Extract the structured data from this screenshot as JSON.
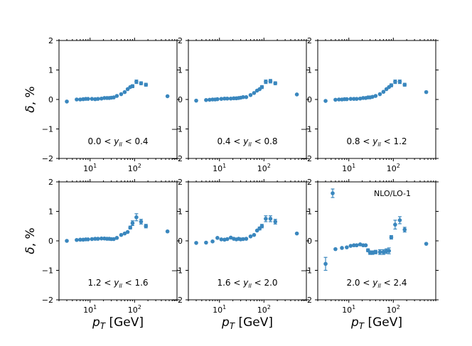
{
  "figure": {
    "x_axis_label_main": "p",
    "x_axis_label_sub": "T",
    "x_axis_label_unit": "[GeV]",
    "y_axis_label_main": "δ",
    "y_axis_label_unit": ", %",
    "legend_label": "NLO/LO-1",
    "x_tick_labels": [
      "10",
      "10"
    ],
    "x_tick_exponents": [
      "1",
      "2"
    ],
    "y_tick_labels": [
      "2",
      "1",
      "0",
      "−1",
      "−2"
    ],
    "marker_color": "#3a87be"
  },
  "chart_data": [
    {
      "type": "scatter",
      "panel": "0.0 < y_ll < 0.4",
      "label_left": "0.0 < ",
      "label_var": "y",
      "label_sub": "ll",
      "label_right": " < 0.4",
      "xscale": "log",
      "xlim": [
        2,
        900
      ],
      "ylim": [
        -2,
        2
      ],
      "x": [
        3,
        5,
        6,
        7,
        8,
        9,
        11,
        13,
        15,
        18,
        21,
        24,
        27,
        30,
        34,
        40,
        50,
        60,
        70,
        80,
        90,
        110,
        140,
        180,
        550
      ],
      "y": [
        -0.07,
        0.0,
        0.0,
        0.01,
        0.02,
        0.02,
        0.02,
        0.01,
        0.02,
        0.03,
        0.05,
        0.05,
        0.05,
        0.06,
        0.07,
        0.12,
        0.18,
        0.25,
        0.35,
        0.42,
        0.45,
        0.6,
        0.55,
        0.5,
        0.11
      ],
      "yerr": [
        0.02,
        0.02,
        0.02,
        0.02,
        0.02,
        0.02,
        0.02,
        0.02,
        0.02,
        0.02,
        0.02,
        0.02,
        0.02,
        0.02,
        0.02,
        0.02,
        0.03,
        0.03,
        0.04,
        0.04,
        0.05,
        0.06,
        0.05,
        0.05,
        0.04
      ]
    },
    {
      "type": "scatter",
      "panel": "0.4 < y_ll < 0.8",
      "label_left": "0.4 < ",
      "label_var": "y",
      "label_sub": "ll",
      "label_right": " < 0.8",
      "xscale": "log",
      "xlim": [
        2,
        900
      ],
      "ylim": [
        -2,
        2
      ],
      "x": [
        3,
        5,
        6,
        7,
        8,
        9,
        11,
        13,
        15,
        18,
        21,
        24,
        27,
        30,
        34,
        40,
        50,
        60,
        70,
        80,
        90,
        110,
        140,
        180,
        550
      ],
      "y": [
        -0.04,
        -0.02,
        -0.01,
        0.0,
        0.0,
        0.01,
        0.02,
        0.03,
        0.03,
        0.03,
        0.04,
        0.04,
        0.05,
        0.06,
        0.08,
        0.08,
        0.15,
        0.22,
        0.3,
        0.35,
        0.42,
        0.6,
        0.62,
        0.55,
        0.17
      ],
      "yerr": [
        0.02,
        0.02,
        0.02,
        0.02,
        0.02,
        0.02,
        0.02,
        0.02,
        0.02,
        0.02,
        0.02,
        0.02,
        0.02,
        0.02,
        0.02,
        0.02,
        0.03,
        0.03,
        0.04,
        0.04,
        0.05,
        0.06,
        0.06,
        0.05,
        0.04
      ]
    },
    {
      "type": "scatter",
      "panel": "0.8 < y_ll < 1.2",
      "label_left": "0.8 < ",
      "label_var": "y",
      "label_sub": "ll",
      "label_right": " < 1.2",
      "xscale": "log",
      "xlim": [
        2,
        900
      ],
      "ylim": [
        -2,
        2
      ],
      "x": [
        3,
        5,
        6,
        7,
        8,
        9,
        11,
        13,
        15,
        18,
        21,
        24,
        27,
        30,
        34,
        40,
        50,
        60,
        70,
        80,
        90,
        110,
        140,
        180,
        550
      ],
      "y": [
        -0.05,
        -0.01,
        0.0,
        0.0,
        0.01,
        0.01,
        0.02,
        0.02,
        0.02,
        0.03,
        0.05,
        0.05,
        0.07,
        0.07,
        0.09,
        0.12,
        0.18,
        0.26,
        0.35,
        0.42,
        0.48,
        0.6,
        0.6,
        0.5,
        0.25
      ],
      "yerr": [
        0.02,
        0.02,
        0.02,
        0.02,
        0.02,
        0.02,
        0.02,
        0.02,
        0.02,
        0.02,
        0.02,
        0.02,
        0.02,
        0.02,
        0.02,
        0.02,
        0.03,
        0.03,
        0.04,
        0.04,
        0.05,
        0.06,
        0.06,
        0.05,
        0.04
      ]
    },
    {
      "type": "scatter",
      "panel": "1.2 < y_ll < 1.6",
      "label_left": "1.2 < ",
      "label_var": "y",
      "label_sub": "ll",
      "label_right": " < 1.6",
      "xscale": "log",
      "xlim": [
        2,
        900
      ],
      "ylim": [
        -2,
        2
      ],
      "x": [
        3,
        5,
        6,
        7,
        8,
        9,
        11,
        13,
        15,
        18,
        21,
        24,
        27,
        30,
        34,
        40,
        50,
        60,
        70,
        80,
        90,
        110,
        140,
        180,
        550
      ],
      "y": [
        0.0,
        0.03,
        0.04,
        0.04,
        0.05,
        0.05,
        0.06,
        0.07,
        0.07,
        0.08,
        0.08,
        0.07,
        0.07,
        0.06,
        0.06,
        0.1,
        0.2,
        0.25,
        0.3,
        0.45,
        0.6,
        0.8,
        0.65,
        0.5,
        0.32
      ],
      "yerr": [
        0.02,
        0.02,
        0.02,
        0.02,
        0.02,
        0.02,
        0.02,
        0.02,
        0.02,
        0.02,
        0.02,
        0.02,
        0.02,
        0.02,
        0.02,
        0.02,
        0.03,
        0.03,
        0.04,
        0.05,
        0.08,
        0.12,
        0.08,
        0.06,
        0.04
      ]
    },
    {
      "type": "scatter",
      "panel": "1.6 < y_ll < 2.0",
      "label_left": "1.6 < ",
      "label_var": "y",
      "label_sub": "ll",
      "label_right": " < 2.0",
      "xscale": "log",
      "xlim": [
        2,
        900
      ],
      "ylim": [
        -2,
        2
      ],
      "x": [
        3,
        5,
        7,
        9,
        11,
        13,
        15,
        18,
        21,
        24,
        27,
        30,
        34,
        40,
        50,
        60,
        70,
        80,
        90,
        110,
        140,
        180,
        550
      ],
      "y": [
        -0.07,
        -0.06,
        -0.02,
        0.1,
        0.05,
        0.04,
        0.06,
        0.11,
        0.07,
        0.05,
        0.07,
        0.05,
        0.06,
        0.07,
        0.15,
        0.2,
        0.35,
        0.42,
        0.5,
        0.75,
        0.75,
        0.65,
        0.25
      ],
      "yerr": [
        0.02,
        0.02,
        0.02,
        0.02,
        0.02,
        0.02,
        0.02,
        0.02,
        0.02,
        0.02,
        0.02,
        0.02,
        0.02,
        0.02,
        0.03,
        0.03,
        0.04,
        0.05,
        0.06,
        0.1,
        0.1,
        0.08,
        0.04
      ]
    },
    {
      "type": "scatter",
      "panel": "2.0 < y_ll < 2.4",
      "label_left": "2.0 < ",
      "label_var": "y",
      "label_sub": "ll",
      "label_right": " < 2.4",
      "legend": "NLO/LO-1",
      "xscale": "log",
      "xlim": [
        2,
        900
      ],
      "ylim": [
        -2,
        2
      ],
      "x": [
        3,
        5,
        7,
        9,
        11,
        13,
        15,
        18,
        21,
        24,
        27,
        30,
        34,
        40,
        50,
        60,
        70,
        80,
        90,
        110,
        140,
        180,
        550
      ],
      "y": [
        -0.78,
        -0.28,
        -0.24,
        -0.22,
        -0.17,
        -0.15,
        -0.15,
        -0.12,
        -0.15,
        -0.15,
        -0.32,
        -0.4,
        -0.4,
        -0.38,
        -0.38,
        -0.38,
        -0.35,
        -0.34,
        0.12,
        0.55,
        0.7,
        0.38,
        -0.1
      ],
      "yerr": [
        0.22,
        0.03,
        0.03,
        0.03,
        0.03,
        0.03,
        0.03,
        0.03,
        0.03,
        0.03,
        0.05,
        0.06,
        0.06,
        0.06,
        0.08,
        0.08,
        0.08,
        0.1,
        0.06,
        0.15,
        0.12,
        0.08,
        0.04
      ]
    }
  ]
}
